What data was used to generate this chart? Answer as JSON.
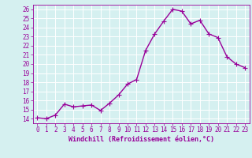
{
  "x": [
    0,
    1,
    2,
    3,
    4,
    5,
    6,
    7,
    8,
    9,
    10,
    11,
    12,
    13,
    14,
    15,
    16,
    17,
    18,
    19,
    20,
    21,
    22,
    23
  ],
  "y": [
    14.1,
    14.0,
    14.4,
    15.6,
    15.3,
    15.4,
    15.5,
    14.9,
    15.7,
    16.6,
    17.8,
    18.3,
    21.5,
    23.3,
    24.7,
    26.0,
    25.8,
    24.4,
    24.8,
    23.3,
    22.9,
    20.8,
    20.0,
    19.6
  ],
  "line_color": "#990099",
  "marker": "D",
  "marker_size": 2,
  "linewidth": 1.0,
  "xlabel": "Windchill (Refroidissement éolien,°C)",
  "xlabel_fontsize": 6,
  "bg_color": "#d5f0f0",
  "grid_color": "#b0d8d8",
  "tick_color": "#990099",
  "ylim": [
    13.5,
    26.5
  ],
  "xlim": [
    -0.5,
    23.5
  ],
  "yticks": [
    14,
    15,
    16,
    17,
    18,
    19,
    20,
    21,
    22,
    23,
    24,
    25,
    26
  ],
  "xticks": [
    0,
    1,
    2,
    3,
    4,
    5,
    6,
    7,
    8,
    9,
    10,
    11,
    12,
    13,
    14,
    15,
    16,
    17,
    18,
    19,
    20,
    21,
    22,
    23
  ],
  "tick_fontsize": 5.5
}
